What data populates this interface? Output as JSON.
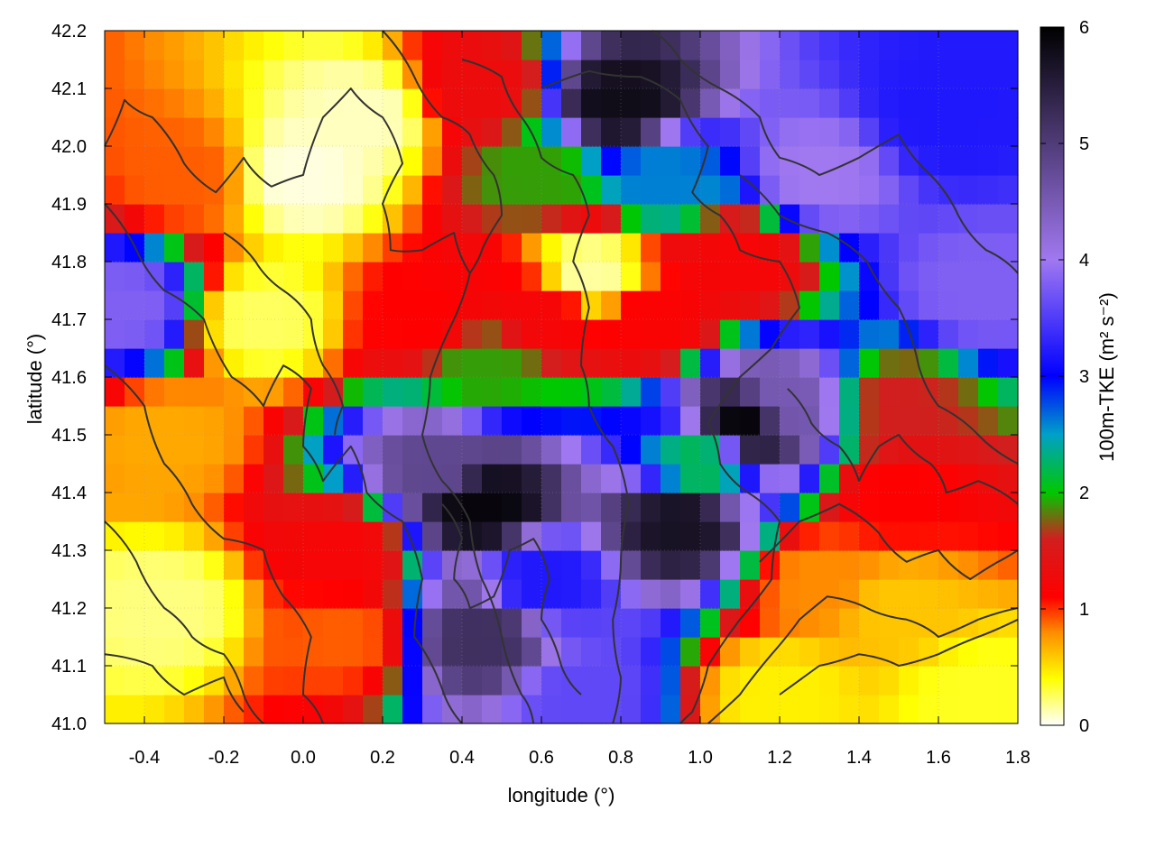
{
  "chart_data": {
    "type": "heatmap",
    "title": "",
    "xlabel": "longitude (°)",
    "ylabel": "latitude (°)",
    "colorbar_label": "100m-TKE (m² s⁻²)",
    "xlim": [
      -0.5,
      1.8
    ],
    "ylim": [
      41.0,
      42.2
    ],
    "clim": [
      0,
      6
    ],
    "x_ticks": [
      -0.4,
      -0.2,
      0.0,
      0.2,
      0.4,
      0.6,
      0.8,
      1.0,
      1.2,
      1.4,
      1.6,
      1.8
    ],
    "x_tick_labels": [
      "-0.4",
      "-0.2",
      "0.0",
      "0.2",
      "0.4",
      "0.6",
      "0.8",
      "1.0",
      "1.2",
      "1.4",
      "1.6",
      "1.8"
    ],
    "y_ticks": [
      41.0,
      41.1,
      41.2,
      41.3,
      41.4,
      41.5,
      41.6,
      41.7,
      41.8,
      41.9,
      42.0,
      42.1,
      42.2
    ],
    "y_tick_labels": [
      "41.0",
      "41.1",
      "41.2",
      "41.3",
      "41.4",
      "41.5",
      "41.6",
      "41.7",
      "41.8",
      "41.9",
      "42.0",
      "42.1",
      "42.2"
    ],
    "colorbar_ticks": [
      0,
      1,
      2,
      3,
      4,
      5,
      6
    ],
    "colorbar_tick_labels": [
      "0",
      "1",
      "2",
      "3",
      "4",
      "5",
      "6"
    ],
    "colorscale": [
      {
        "value": 0.0,
        "color": "#ffffff"
      },
      {
        "value": 0.4,
        "color": "#ffff00"
      },
      {
        "value": 0.8,
        "color": "#ff8c00"
      },
      {
        "value": 1.1,
        "color": "#ff0000"
      },
      {
        "value": 1.6,
        "color": "#d21e1e"
      },
      {
        "value": 2.0,
        "color": "#00c800"
      },
      {
        "value": 2.5,
        "color": "#00a0c8"
      },
      {
        "value": 3.0,
        "color": "#0000ff"
      },
      {
        "value": 4.0,
        "color": "#a078f0"
      },
      {
        "value": 5.0,
        "color": "#503c78"
      },
      {
        "value": 6.0,
        "color": "#000000"
      }
    ],
    "grid": true,
    "contour_color": "#333333",
    "regions": [
      {
        "lon": -0.3,
        "lat": 41.95,
        "value": 0.9
      },
      {
        "lon": -0.45,
        "lat": 41.72,
        "value": 3.8
      },
      {
        "lon": -0.35,
        "lat": 41.5,
        "value": 0.7
      },
      {
        "lon": -0.35,
        "lat": 41.2,
        "value": 0.2
      },
      {
        "lon": 0.0,
        "lat": 41.95,
        "value": 0.05
      },
      {
        "lon": 0.15,
        "lat": 42.05,
        "value": 0.1
      },
      {
        "lon": -0.1,
        "lat": 41.7,
        "value": 0.25
      },
      {
        "lon": 0.1,
        "lat": 41.3,
        "value": 1.2
      },
      {
        "lon": 0.1,
        "lat": 41.15,
        "value": 0.9
      },
      {
        "lon": 0.3,
        "lat": 41.7,
        "value": 1.1
      },
      {
        "lon": 0.45,
        "lat": 41.62,
        "value": 1.9
      },
      {
        "lon": 0.6,
        "lat": 41.72,
        "value": 1.2
      },
      {
        "lon": 0.72,
        "lat": 41.78,
        "value": 0.15
      },
      {
        "lon": 0.6,
        "lat": 41.95,
        "value": 1.9
      },
      {
        "lon": 0.45,
        "lat": 42.1,
        "value": 1.3
      },
      {
        "lon": 0.8,
        "lat": 42.07,
        "value": 5.8
      },
      {
        "lon": 0.9,
        "lat": 41.95,
        "value": 2.6
      },
      {
        "lon": 0.88,
        "lat": 41.7,
        "value": 1.15
      },
      {
        "lon": 1.1,
        "lat": 41.8,
        "value": 1.2
      },
      {
        "lon": 1.2,
        "lat": 41.55,
        "value": 4.5
      },
      {
        "lon": 1.12,
        "lat": 41.52,
        "value": 5.9
      },
      {
        "lon": 1.3,
        "lat": 41.95,
        "value": 4.0
      },
      {
        "lon": 1.6,
        "lat": 42.05,
        "value": 3.2
      },
      {
        "lon": 1.7,
        "lat": 41.75,
        "value": 3.8
      },
      {
        "lon": 1.5,
        "lat": 41.55,
        "value": 1.6
      },
      {
        "lon": 1.5,
        "lat": 41.4,
        "value": 1.1
      },
      {
        "lon": 0.35,
        "lat": 41.45,
        "value": 4.8
      },
      {
        "lon": 0.45,
        "lat": 41.38,
        "value": 5.9
      },
      {
        "lon": 0.95,
        "lat": 41.35,
        "value": 5.7
      },
      {
        "lon": 0.6,
        "lat": 41.25,
        "value": 3.2
      },
      {
        "lon": 0.45,
        "lat": 41.15,
        "value": 5.2
      },
      {
        "lon": 0.7,
        "lat": 41.05,
        "value": 3.6
      },
      {
        "lon": 1.0,
        "lat": 41.45,
        "value": 2.2
      },
      {
        "lon": 1.3,
        "lat": 41.25,
        "value": 0.8
      },
      {
        "lon": 1.5,
        "lat": 41.2,
        "value": 0.6
      },
      {
        "lon": 1.2,
        "lat": 41.05,
        "value": 0.45
      },
      {
        "lon": 1.7,
        "lat": 41.05,
        "value": 0.35
      }
    ]
  }
}
